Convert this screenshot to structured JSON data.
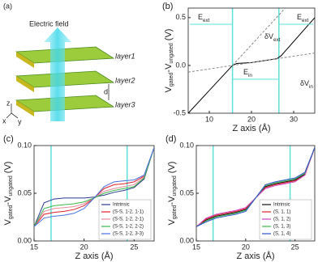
{
  "diagram": {
    "label": "(a)",
    "field": "Electric field",
    "layers": [
      "layer1",
      "layer2",
      "layer3"
    ],
    "gap": "d",
    "axes": [
      "z",
      "x",
      "y"
    ]
  },
  "chart_data": [
    {
      "type": "line",
      "label": "(b)",
      "xlabel": "Z axis (Å)",
      "ylabel": [
        "V",
        "gated",
        "-V",
        "ungated",
        " (V)"
      ],
      "xlim": [
        5,
        35
      ],
      "xticks": [
        10,
        20,
        30
      ],
      "ylim": [
        -0.5,
        0.6
      ],
      "yticks": [
        -0.5,
        {
          "value": 0,
          "label": "0.0"
        },
        0.5
      ],
      "vlines": [
        15.5,
        26.5
      ],
      "vline_color": "#5ee0d8",
      "annotations": [
        {
          "text": "E",
          "sub": "ext"
        },
        {
          "text": "E",
          "sub": "ext"
        },
        {
          "text": "E",
          "sub": "in"
        },
        {
          "text": "δV",
          "sub": "ext"
        },
        {
          "text": "δV",
          "sub": "in"
        }
      ],
      "series": [
        {
          "color": "#000000",
          "style": "solid",
          "x": [
            5,
            15.5,
            16.5,
            20,
            23,
            26,
            27,
            35
          ],
          "values": [
            -0.5,
            0,
            0.02,
            0.03,
            0.05,
            0.07,
            0.1,
            0.5
          ]
        },
        {
          "color": "#888888",
          "style": "dashed",
          "x": [
            15.5,
            28
          ],
          "values": [
            0,
            0.6
          ]
        },
        {
          "color": "#888888",
          "style": "dashed",
          "x": [
            5,
            35
          ],
          "values": [
            -0.07,
            0.13
          ]
        }
      ]
    },
    {
      "type": "line",
      "label": "(c)",
      "xlabel": "Z axis (Å)",
      "ylabel": [
        "V",
        "gated",
        "-V",
        "ungated",
        " (V)"
      ],
      "xlim": [
        15,
        27
      ],
      "xticks": [
        15,
        20,
        25
      ],
      "ylim": [
        0,
        0.1
      ],
      "yticks": [
        {
          "value": 0,
          "label": "0.00"
        },
        0.05,
        {
          "value": 0.1,
          "label": "0.10"
        }
      ],
      "vlines": [
        16.7,
        24.3
      ],
      "vline_color": "#5ee0d8",
      "legend": "lower right",
      "x": [
        15,
        16,
        17,
        18,
        19,
        20,
        21,
        22,
        23,
        24,
        25,
        26,
        27
      ],
      "series": [
        {
          "name": "Intrinsic",
          "color": "#2b3a8f",
          "values": [
            0.015,
            0.04,
            0.044,
            0.045,
            0.045,
            0.045,
            0.046,
            0.048,
            0.051,
            0.053,
            0.056,
            0.065,
            0.098
          ]
        },
        {
          "name": "(S-S, 1-2, 1-1)",
          "color": "#e0202a",
          "values": [
            0.015,
            0.028,
            0.03,
            0.031,
            0.033,
            0.037,
            0.045,
            0.055,
            0.059,
            0.06,
            0.062,
            0.068,
            0.098
          ]
        },
        {
          "name": "(S-S, 1-2, 2-1)",
          "color": "#e88aa0",
          "values": [
            0.015,
            0.031,
            0.034,
            0.035,
            0.036,
            0.039,
            0.045,
            0.052,
            0.055,
            0.057,
            0.059,
            0.067,
            0.098
          ]
        },
        {
          "name": "(S-S, 1-2, 2-2)",
          "color": "#3cb84a",
          "values": [
            0.015,
            0.034,
            0.037,
            0.038,
            0.039,
            0.041,
            0.045,
            0.05,
            0.053,
            0.055,
            0.057,
            0.066,
            0.098
          ]
        },
        {
          "name": "(S-S, 1-2, 3-3)",
          "color": "#4a6fe0",
          "values": [
            0.015,
            0.024,
            0.026,
            0.027,
            0.029,
            0.034,
            0.045,
            0.057,
            0.062,
            0.063,
            0.064,
            0.069,
            0.098
          ]
        }
      ]
    },
    {
      "type": "line",
      "label": "(d)",
      "xlabel": "Z axis (Å)",
      "ylabel": [
        "V",
        "gated",
        "-V",
        "ungated",
        " (V)"
      ],
      "xlim": [
        15,
        27
      ],
      "xticks": [
        15,
        20,
        25
      ],
      "ylim": [
        0,
        0.1
      ],
      "yticks": [
        {
          "value": 0,
          "label": "0.00"
        },
        0.05,
        {
          "value": 0.1,
          "label": "0.10"
        }
      ],
      "vlines": [
        16.7,
        24.5
      ],
      "vline_color": "#5ee0d8",
      "legend": "lower right",
      "x": [
        15,
        16,
        17,
        18,
        19,
        20,
        21,
        22,
        23,
        24,
        25,
        26,
        27
      ],
      "series": [
        {
          "name": "Intrinsic",
          "color": "#111111",
          "values": [
            0.015,
            0.022,
            0.026,
            0.028,
            0.03,
            0.033,
            0.045,
            0.057,
            0.06,
            0.062,
            0.064,
            0.07,
            0.098
          ]
        },
        {
          "name": "(S, 1, 1)",
          "color": "#e0202a",
          "values": [
            0.015,
            0.023,
            0.027,
            0.029,
            0.031,
            0.034,
            0.045,
            0.056,
            0.059,
            0.061,
            0.063,
            0.069,
            0.098
          ]
        },
        {
          "name": "(S, 1, 2)",
          "color": "#d040c0",
          "values": [
            0.015,
            0.024,
            0.028,
            0.03,
            0.032,
            0.035,
            0.045,
            0.055,
            0.058,
            0.06,
            0.062,
            0.069,
            0.098
          ]
        },
        {
          "name": "(S, 1, 3)",
          "color": "#3cb84a",
          "values": [
            0.015,
            0.021,
            0.025,
            0.027,
            0.029,
            0.032,
            0.045,
            0.058,
            0.061,
            0.063,
            0.065,
            0.071,
            0.098
          ]
        },
        {
          "name": "(S, 1, 4)",
          "color": "#3050d0",
          "values": [
            0.015,
            0.02,
            0.024,
            0.026,
            0.028,
            0.031,
            0.045,
            0.059,
            0.062,
            0.064,
            0.066,
            0.072,
            0.098
          ]
        }
      ]
    }
  ]
}
